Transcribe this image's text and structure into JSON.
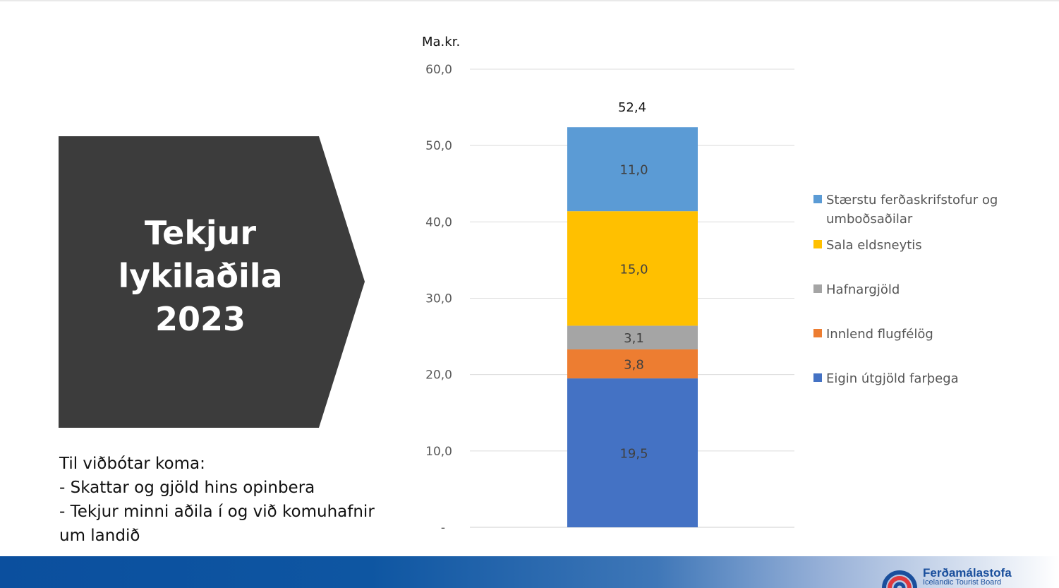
{
  "title": {
    "lines": [
      "Tekjur",
      "lykilaðila",
      "2023"
    ]
  },
  "notes": {
    "lines": [
      "Til viðbótar koma:",
      "- Skattar og gjöld hins opinbera",
      "- Tekjur minni aðila í og við komuhafnir",
      "um landið"
    ]
  },
  "chart_data": {
    "type": "bar",
    "stacked": true,
    "ylabel": "Ma.kr.",
    "ylim": [
      0,
      60
    ],
    "yticks": [
      "-",
      "10,0",
      "20,0",
      "30,0",
      "40,0",
      "50,0",
      "60,0"
    ],
    "grid": true,
    "legend_position": "right",
    "total_label": "52,4",
    "series": [
      {
        "name": "Eigin útgjöld farþega",
        "value": 19.5,
        "label": "19,5",
        "color": "#4472c4"
      },
      {
        "name": "Innlend flugfélög",
        "value": 3.8,
        "label": "3,8",
        "color": "#ed7d31"
      },
      {
        "name": "Hafnargjöld",
        "value": 3.1,
        "label": "3,1",
        "color": "#a5a5a5"
      },
      {
        "name": "Sala eldsneytis",
        "value": 15.0,
        "label": "15,0",
        "color": "#ffc000"
      },
      {
        "name": "Stærstu ferðaskrifstofur og umboðsaðilar",
        "value": 11.0,
        "label": "11,0",
        "color": "#5b9bd5"
      }
    ]
  },
  "branding": {
    "name": "Ferðamálastofa",
    "subtitle": "Icelandic Tourist Board"
  }
}
